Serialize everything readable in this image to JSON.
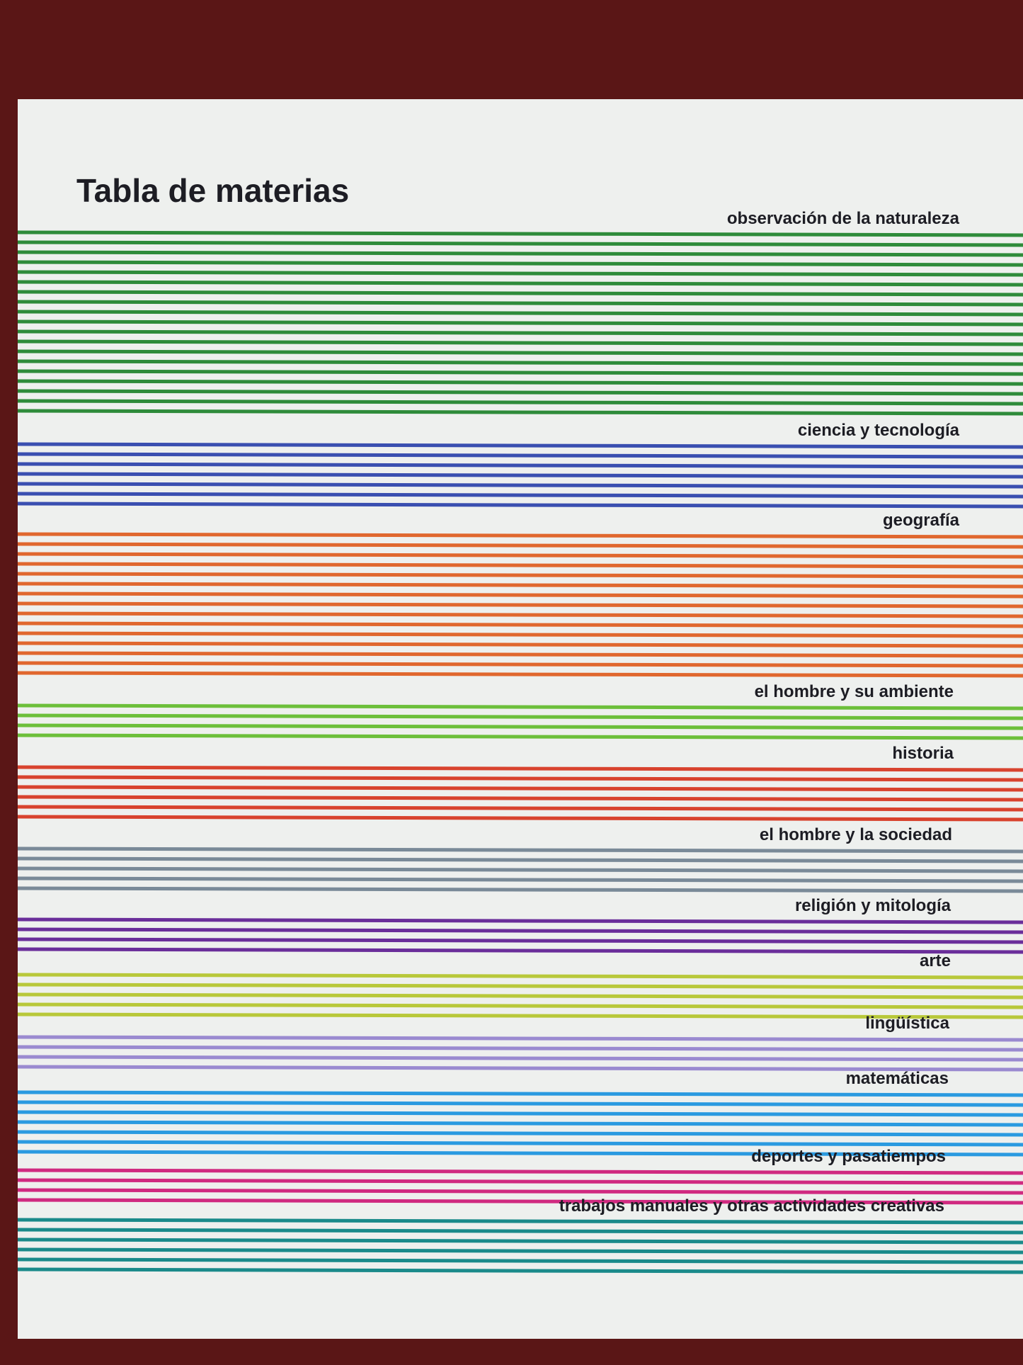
{
  "title": "Tabla de materias",
  "sections": [
    {
      "label": "observación de la naturaleza",
      "color": "#2e8b3a",
      "lines": 19
    },
    {
      "label": "ciencia y tecnología",
      "color": "#3a4fb0",
      "lines": 7
    },
    {
      "label": "geografía",
      "color": "#e0672e",
      "lines": 15
    },
    {
      "label": "el hombre y su ambiente",
      "color": "#6cbf3a",
      "lines": 4
    },
    {
      "label": "historia",
      "color": "#d8432e",
      "lines": 6
    },
    {
      "label": "el hombre y la sociedad",
      "color": "#7a8a98",
      "lines": 5
    },
    {
      "label": "religión y mitología",
      "color": "#6a2e9a",
      "lines": 4
    },
    {
      "label": "arte",
      "color": "#b8c83a",
      "lines": 5
    },
    {
      "label": "lingüística",
      "color": "#9a8ad0",
      "lines": 4
    },
    {
      "label": "matemáticas",
      "color": "#2a9ae0",
      "lines": 7
    },
    {
      "label": "deportes y pasatiempos",
      "color": "#d02a80",
      "lines": 4
    },
    {
      "label": "trabajos manuales y otras actividades creativas",
      "color": "#1a8a8a",
      "lines": 6
    }
  ]
}
